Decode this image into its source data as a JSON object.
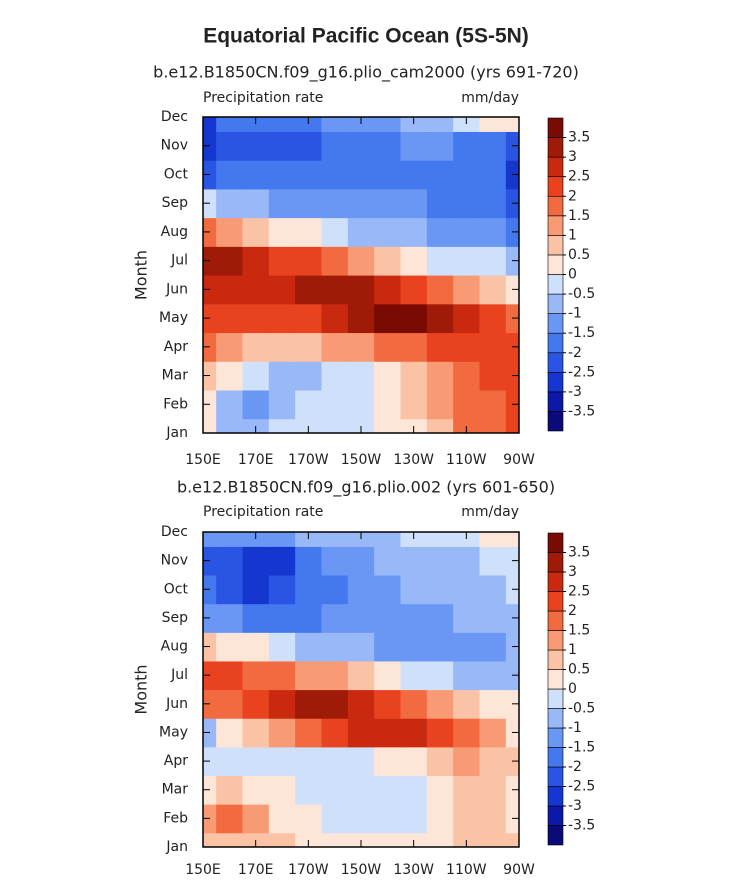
{
  "title": "Equatorial Pacific Ocean (5S-5N)",
  "chart_data": [
    {
      "type": "heatmap",
      "title": "b.e12.B1850CN.f09_g16.plio_cam2000 (yrs 691-720)",
      "left_label": "Precipitation rate",
      "right_label": "mm/day",
      "ylabel": "Month",
      "categories": [
        "Jan",
        "Feb",
        "Mar",
        "Apr",
        "May",
        "Jun",
        "Jul",
        "Aug",
        "Sep",
        "Oct",
        "Nov",
        "Dec"
      ],
      "x": [
        150,
        160,
        170,
        180,
        190,
        200,
        210,
        220,
        230,
        240,
        250,
        260,
        270
      ],
      "xlim": [
        150,
        270
      ],
      "xticks": [
        {
          "value": 150,
          "label": "150E"
        },
        {
          "value": 170,
          "label": "170E"
        },
        {
          "value": 190,
          "label": "170W"
        },
        {
          "value": 210,
          "label": "150W"
        },
        {
          "value": 230,
          "label": "130W"
        },
        {
          "value": 250,
          "label": "110W"
        },
        {
          "value": 270,
          "label": "90W"
        }
      ],
      "levels": [
        -3.5,
        -3,
        -2.5,
        -2,
        -1.5,
        -1,
        -0.5,
        0,
        0.5,
        1,
        1.5,
        2,
        2.5,
        3,
        3.5
      ],
      "colors": [
        "#0a0a78",
        "#0c18a8",
        "#1536cf",
        "#2a55e4",
        "#4478ee",
        "#6a97f3",
        "#99b8f7",
        "#cfe0fb",
        "#fde6d8",
        "#fbc3a6",
        "#f89a74",
        "#f26a40",
        "#e8431e",
        "#c92a0f",
        "#a01a08",
        "#7a0a04"
      ],
      "values": [
        [
          0.3,
          -0.6,
          -0.7,
          -0.4,
          -0.3,
          -0.2,
          -0.2,
          0.2,
          0.4,
          0.8,
          1.5,
          1.8,
          2.0
        ],
        [
          0.4,
          -0.8,
          -1.2,
          -0.8,
          -0.5,
          -0.3,
          -0.3,
          0.2,
          0.5,
          1.0,
          1.8,
          1.5,
          2.2
        ],
        [
          0.6,
          0.2,
          -0.3,
          -0.6,
          -0.6,
          -0.4,
          -0.2,
          0.3,
          0.8,
          1.2,
          1.8,
          2.0,
          2.2
        ],
        [
          1.6,
          1.2,
          0.9,
          0.8,
          0.9,
          1.0,
          1.2,
          1.5,
          1.8,
          2.0,
          2.2,
          2.3,
          2.4
        ],
        [
          2.2,
          2.0,
          2.0,
          2.2,
          2.4,
          2.8,
          3.2,
          3.6,
          3.6,
          3.2,
          2.8,
          2.2,
          1.8
        ],
        [
          2.8,
          2.6,
          2.8,
          2.9,
          3.0,
          3.2,
          3.0,
          2.6,
          2.2,
          1.6,
          1.0,
          0.6,
          0.3
        ],
        [
          3.4,
          3.0,
          2.6,
          2.4,
          2.0,
          1.6,
          1.0,
          0.6,
          0.2,
          -0.2,
          -0.4,
          -0.5,
          -0.6
        ],
        [
          1.8,
          1.2,
          0.8,
          0.4,
          0.0,
          -0.4,
          -0.7,
          -0.9,
          -1.0,
          -1.1,
          -1.2,
          -1.3,
          -1.6
        ],
        [
          -0.4,
          -0.8,
          -1.0,
          -1.2,
          -1.3,
          -1.4,
          -1.4,
          -1.5,
          -1.5,
          -1.6,
          -1.7,
          -1.8,
          -2.2
        ],
        [
          -2.2,
          -2.0,
          -2.0,
          -2.0,
          -1.9,
          -1.8,
          -1.7,
          -1.6,
          -1.6,
          -1.6,
          -1.7,
          -2.0,
          -2.6
        ],
        [
          -2.8,
          -2.5,
          -2.3,
          -2.2,
          -2.2,
          -1.9,
          -1.7,
          -1.6,
          -1.5,
          -1.5,
          -1.6,
          -1.8,
          -2.4
        ],
        [
          -2.6,
          -2.0,
          -1.8,
          -1.7,
          -1.6,
          -1.5,
          -1.5,
          -1.3,
          -1.0,
          -0.6,
          -0.2,
          0.2,
          0.4
        ]
      ]
    },
    {
      "type": "heatmap",
      "title": "b.e12.B1850CN.f09_g16.plio.002 (yrs 601-650)",
      "left_label": "Precipitation rate",
      "right_label": "mm/day",
      "ylabel": "Month",
      "categories": [
        "Jan",
        "Feb",
        "Mar",
        "Apr",
        "May",
        "Jun",
        "Jul",
        "Aug",
        "Sep",
        "Oct",
        "Nov",
        "Dec"
      ],
      "x": [
        150,
        160,
        170,
        180,
        190,
        200,
        210,
        220,
        230,
        240,
        250,
        260,
        270
      ],
      "xlim": [
        150,
        270
      ],
      "xticks": [
        {
          "value": 150,
          "label": "150E"
        },
        {
          "value": 170,
          "label": "170E"
        },
        {
          "value": 190,
          "label": "170W"
        },
        {
          "value": 210,
          "label": "150W"
        },
        {
          "value": 230,
          "label": "130W"
        },
        {
          "value": 250,
          "label": "110W"
        },
        {
          "value": 270,
          "label": "90W"
        }
      ],
      "levels": [
        -3.5,
        -3,
        -2.5,
        -2,
        -1.5,
        -1,
        -0.5,
        0,
        0.5,
        1,
        1.5,
        2,
        2.5,
        3,
        3.5
      ],
      "colors": [
        "#0a0a78",
        "#0c18a8",
        "#1536cf",
        "#2a55e4",
        "#4478ee",
        "#6a97f3",
        "#99b8f7",
        "#cfe0fb",
        "#fde6d8",
        "#fbc3a6",
        "#f89a74",
        "#f26a40",
        "#e8431e",
        "#c92a0f",
        "#a01a08",
        "#7a0a04"
      ],
      "values": [
        [
          0.8,
          0.8,
          0.6,
          0.5,
          0.3,
          0.2,
          0.1,
          0.0,
          0.1,
          0.3,
          0.6,
          0.6,
          0.5
        ],
        [
          1.2,
          1.6,
          1.0,
          0.4,
          0.1,
          -0.2,
          -0.3,
          -0.3,
          -0.1,
          0.2,
          0.5,
          0.5,
          0.4
        ],
        [
          0.4,
          0.5,
          0.3,
          0.1,
          -0.3,
          -0.4,
          -0.4,
          -0.3,
          -0.2,
          0.2,
          0.6,
          0.5,
          0.4
        ],
        [
          -0.4,
          -0.3,
          -0.2,
          -0.3,
          -0.3,
          -0.3,
          -0.2,
          0.1,
          0.4,
          0.8,
          1.0,
          0.8,
          0.5
        ],
        [
          -0.8,
          0.3,
          0.6,
          1.0,
          1.5,
          2.0,
          2.5,
          2.7,
          2.8,
          2.3,
          1.6,
          1.0,
          0.4
        ],
        [
          1.6,
          1.8,
          2.2,
          2.6,
          3.0,
          3.3,
          2.8,
          2.2,
          1.6,
          1.0,
          0.5,
          0.2,
          0.0
        ],
        [
          2.2,
          2.0,
          1.8,
          1.6,
          1.4,
          1.0,
          0.6,
          0.2,
          -0.2,
          -0.5,
          -0.7,
          -0.7,
          -0.7
        ],
        [
          0.8,
          0.4,
          0.0,
          -0.4,
          -0.7,
          -0.9,
          -1.0,
          -1.1,
          -1.1,
          -1.2,
          -1.2,
          -1.3,
          -1.0
        ],
        [
          -1.2,
          -1.5,
          -1.6,
          -1.6,
          -1.6,
          -1.3,
          -1.2,
          -1.2,
          -1.1,
          -1.1,
          -1.0,
          -0.9,
          -0.6
        ],
        [
          -2.0,
          -2.4,
          -2.6,
          -2.4,
          -2.0,
          -1.6,
          -1.2,
          -1.1,
          -1.0,
          -0.9,
          -0.8,
          -0.6,
          -0.3
        ],
        [
          -2.3,
          -2.2,
          -2.7,
          -2.6,
          -2.0,
          -1.5,
          -1.2,
          -1.0,
          -0.8,
          -0.7,
          -0.6,
          -0.4,
          -0.2
        ],
        [
          -1.4,
          -1.3,
          -1.2,
          -1.1,
          -0.9,
          -0.8,
          -0.7,
          -0.6,
          -0.5,
          -0.4,
          -0.2,
          0.2,
          0.4
        ]
      ]
    }
  ]
}
